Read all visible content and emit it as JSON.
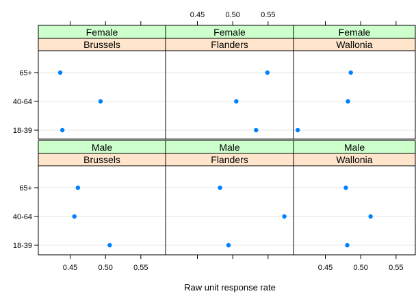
{
  "chart_data": {
    "type": "scatter",
    "xlabel": "Raw unit response rate",
    "x_ticks": [
      0.45,
      0.5,
      0.55
    ],
    "x_tick_labels": [
      "0.45",
      "0.50",
      "0.55"
    ],
    "xlim": [
      0.405,
      0.585
    ],
    "ylabel": "",
    "categories": [
      "18-39",
      "40-64",
      "65+"
    ],
    "colors": {
      "point": "#0080ff",
      "strip_gender": "#ccffcc",
      "strip_region": "#ffe5cc",
      "grid": "#e6e6e6"
    },
    "grid": true,
    "panels": [
      {
        "gender": "Female",
        "region": "Brussels",
        "values": {
          "65+": 0.436,
          "40-64": 0.493,
          "18-39": 0.439
        }
      },
      {
        "gender": "Female",
        "region": "Flanders",
        "values": {
          "65+": 0.549,
          "40-64": 0.505,
          "18-39": 0.533
        }
      },
      {
        "gender": "Female",
        "region": "Wallonia",
        "values": {
          "65+": 0.486,
          "40-64": 0.482,
          "18-39": 0.411
        }
      },
      {
        "gender": "Male",
        "region": "Brussels",
        "values": {
          "65+": 0.461,
          "40-64": 0.456,
          "18-39": 0.506
        }
      },
      {
        "gender": "Male",
        "region": "Flanders",
        "values": {
          "65+": 0.482,
          "40-64": 0.573,
          "18-39": 0.494
        }
      },
      {
        "gender": "Male",
        "region": "Wallonia",
        "values": {
          "65+": 0.479,
          "40-64": 0.514,
          "18-39": 0.481
        }
      }
    ]
  }
}
